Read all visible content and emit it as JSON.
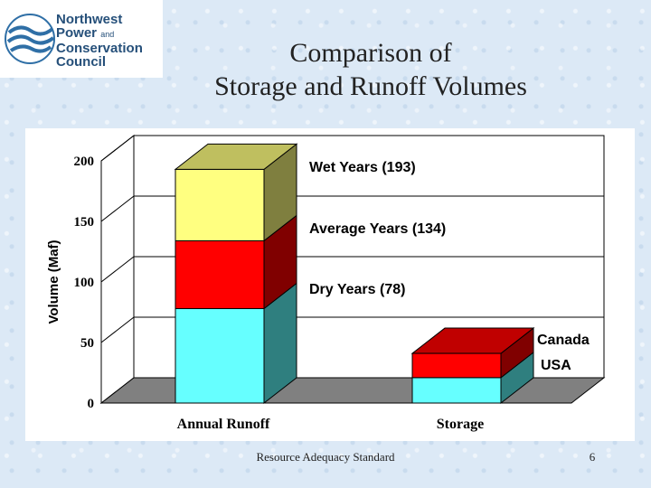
{
  "logo": {
    "line1": "Northwest",
    "line2": "Power",
    "line2_small": "and",
    "line3": "Conservation",
    "line4": "Council",
    "emblem": "wave-emblem-icon"
  },
  "slide": {
    "title_line1": "Comparison of",
    "title_line2": "Storage and Runoff Volumes",
    "footer": "Resource Adequacy Standard",
    "page_number": "6"
  },
  "chart_data": {
    "type": "bar",
    "subtype": "stacked-3d",
    "categories": [
      "Annual Runoff",
      "Storage"
    ],
    "ylabel": "Volume (Maf)",
    "xlabel": "",
    "ylim": [
      0,
      200
    ],
    "yticks": [
      0,
      50,
      100,
      150,
      200
    ],
    "grid": true,
    "runoff_series": [
      {
        "label": "Dry Years (78)",
        "value": 78,
        "color": "#66ffff",
        "side": "#2f7f7f"
      },
      {
        "label": "Average Years (134)",
        "value": 134,
        "color": "#ff0000",
        "side": "#800000"
      },
      {
        "label": "Wet Years (193)",
        "value": 193,
        "color": "#ffff80",
        "side": "#7f7f3f"
      }
    ],
    "storage_series": [
      {
        "label": "USA",
        "value": 21,
        "color": "#66ffff",
        "side": "#2f7f7f"
      },
      {
        "label": "Canada",
        "value": 41,
        "color": "#ff0000",
        "side": "#800000"
      }
    ]
  }
}
